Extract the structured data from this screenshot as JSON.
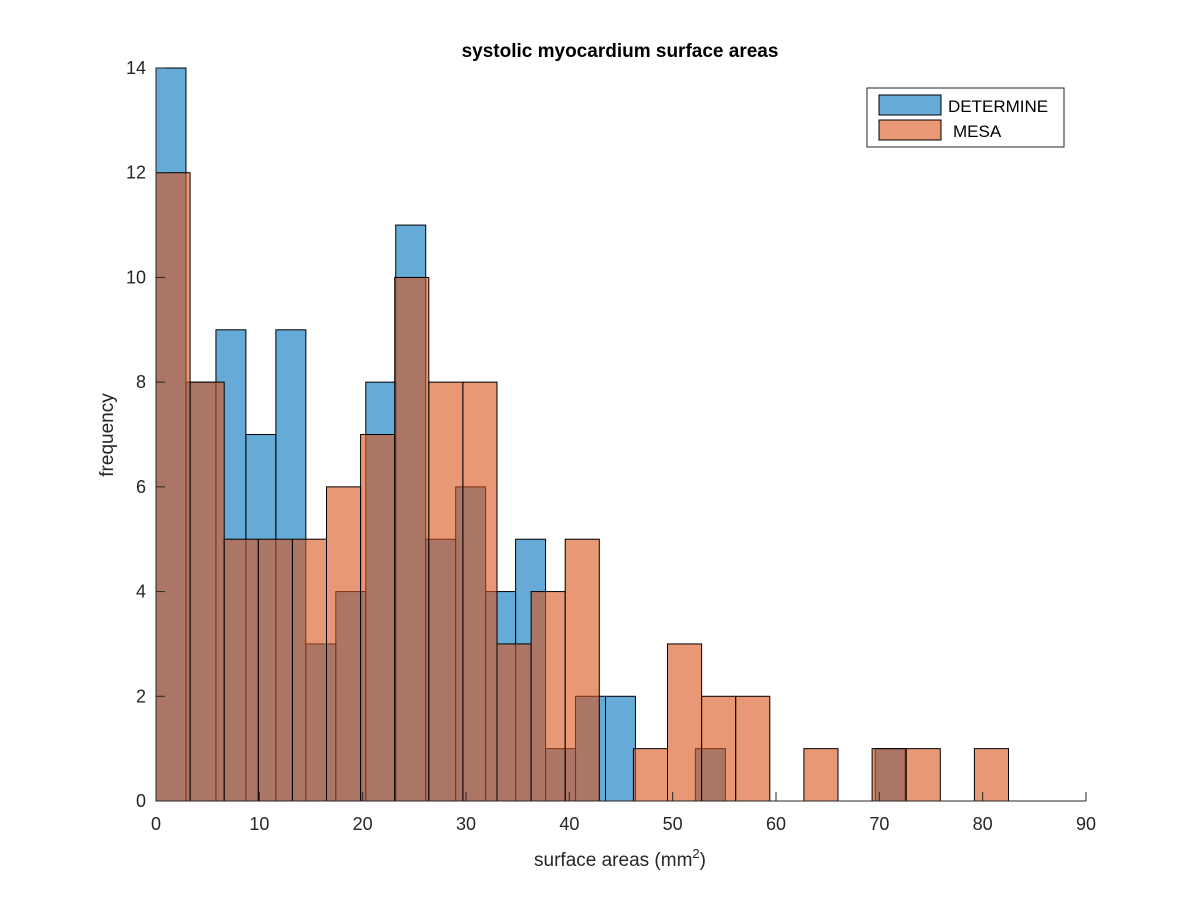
{
  "chart_data": {
    "type": "bar",
    "subtype": "overlapping histogram",
    "title": "systolic myocardium surface areas",
    "xlabel_main": "surface areas (mm",
    "xlabel_sup": "2",
    "xlabel_end": ")",
    "ylabel": "frequency",
    "xlim": [
      0,
      90
    ],
    "ylim": [
      0,
      14
    ],
    "xticks": [
      0,
      10,
      20,
      30,
      40,
      50,
      60,
      70,
      80,
      90
    ],
    "yticks": [
      0,
      2,
      4,
      6,
      8,
      10,
      12,
      14
    ],
    "grid": false,
    "legend_position": "top-right",
    "series": [
      {
        "name": "DETERMINE",
        "color": "#0072BD",
        "face_alpha": 0.6,
        "bin_width": 2.9,
        "bins": [
          {
            "x0": 0.0,
            "count": 14
          },
          {
            "x0": 2.9,
            "count": 8
          },
          {
            "x0": 5.8,
            "count": 9
          },
          {
            "x0": 8.7,
            "count": 7
          },
          {
            "x0": 11.6,
            "count": 9
          },
          {
            "x0": 14.5,
            "count": 3
          },
          {
            "x0": 17.4,
            "count": 4
          },
          {
            "x0": 20.3,
            "count": 8
          },
          {
            "x0": 23.2,
            "count": 11
          },
          {
            "x0": 26.1,
            "count": 5
          },
          {
            "x0": 29.0,
            "count": 6
          },
          {
            "x0": 31.9,
            "count": 4
          },
          {
            "x0": 34.8,
            "count": 5
          },
          {
            "x0": 37.7,
            "count": 1
          },
          {
            "x0": 40.6,
            "count": 2
          },
          {
            "x0": 43.5,
            "count": 2
          },
          {
            "x0": 52.2,
            "count": 1
          },
          {
            "x0": 69.6,
            "count": 1
          }
        ]
      },
      {
        "name": "MESA",
        "color": "#D95319",
        "face_alpha": 0.6,
        "bin_width": 3.3,
        "bins": [
          {
            "x0": 0.0,
            "count": 12
          },
          {
            "x0": 3.3,
            "count": 8
          },
          {
            "x0": 6.6,
            "count": 5
          },
          {
            "x0": 9.9,
            "count": 5
          },
          {
            "x0": 13.2,
            "count": 5
          },
          {
            "x0": 16.5,
            "count": 6
          },
          {
            "x0": 19.8,
            "count": 7
          },
          {
            "x0": 23.1,
            "count": 10
          },
          {
            "x0": 26.4,
            "count": 8
          },
          {
            "x0": 29.7,
            "count": 8
          },
          {
            "x0": 33.0,
            "count": 3
          },
          {
            "x0": 36.3,
            "count": 4
          },
          {
            "x0": 39.6,
            "count": 5
          },
          {
            "x0": 42.9,
            "count": 0
          },
          {
            "x0": 46.2,
            "count": 1
          },
          {
            "x0": 49.5,
            "count": 3
          },
          {
            "x0": 52.8,
            "count": 2
          },
          {
            "x0": 56.1,
            "count": 2
          },
          {
            "x0": 59.4,
            "count": 0
          },
          {
            "x0": 62.7,
            "count": 1
          },
          {
            "x0": 66.0,
            "count": 0
          },
          {
            "x0": 69.3,
            "count": 1
          },
          {
            "x0": 72.6,
            "count": 1
          },
          {
            "x0": 75.9,
            "count": 0
          },
          {
            "x0": 79.2,
            "count": 1
          }
        ]
      }
    ]
  }
}
